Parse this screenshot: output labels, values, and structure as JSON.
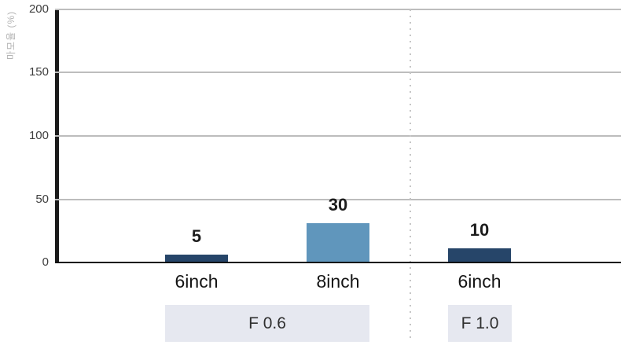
{
  "chart_data": {
    "type": "bar",
    "title": "",
    "xlabel": "",
    "ylabel": "마모율 (%)",
    "ylim": [
      0,
      200
    ],
    "y_ticks": [
      0,
      50,
      100,
      150,
      200
    ],
    "grid": "horizontal",
    "legend": "none",
    "groups": [
      {
        "label": "F 0.6",
        "bars": [
          {
            "category": "6inch",
            "value": 5,
            "color": "#264569"
          },
          {
            "category": "8inch",
            "value": 30,
            "color": "#6096bc"
          }
        ]
      },
      {
        "label": "F 1.0",
        "bars": [
          {
            "category": "6inch",
            "value": 10,
            "color": "#264569"
          }
        ]
      }
    ],
    "colors": {
      "bar_dark_navy": "#264569",
      "bar_steel_blue": "#6096bc",
      "band_background": "#e6e8f0",
      "gridline": "#bdbdbd",
      "axis": "#1a1a1a",
      "axis_title": "#b3b3b3"
    }
  }
}
